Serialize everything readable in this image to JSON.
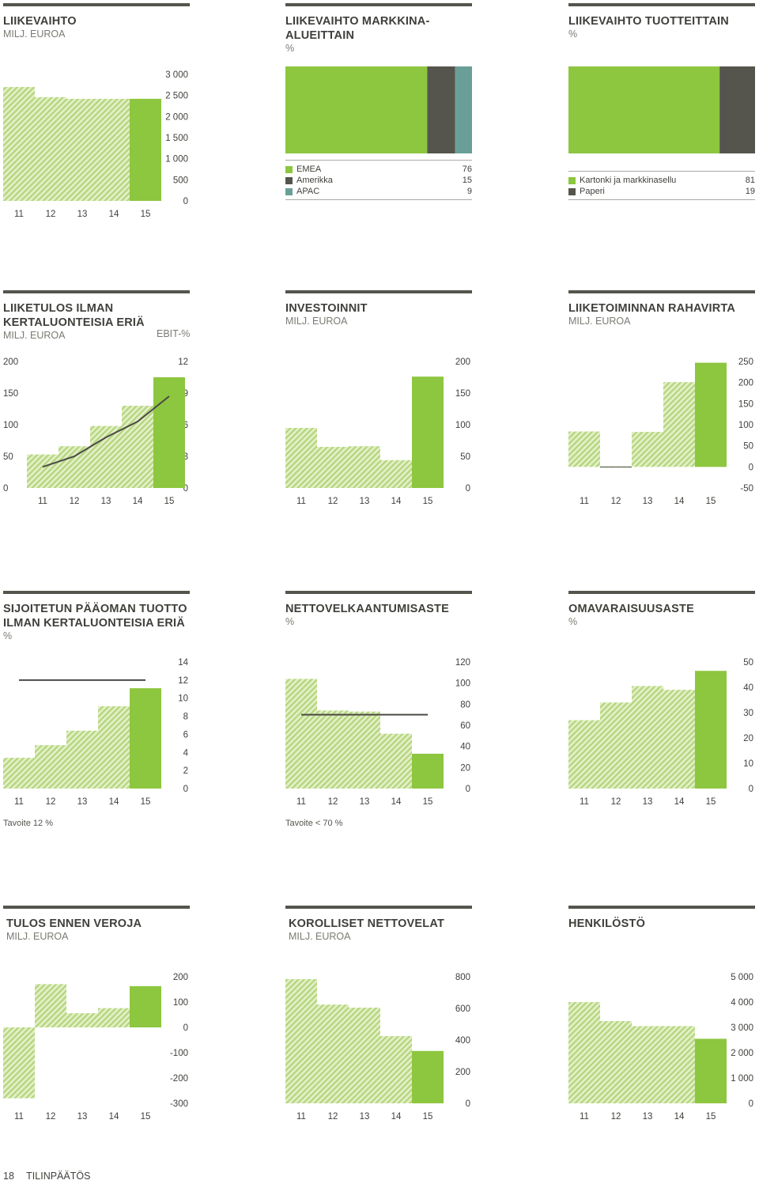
{
  "colors": {
    "green": "#8dc63f",
    "hatch_light": "#e3efc6",
    "hatch_line": "#b2d57c",
    "dark": "#55554e",
    "teal": "#6a9f98",
    "rule": "#55554e",
    "line": "#4a4a44"
  },
  "footer": {
    "page_number": "18",
    "section": "TILINPÄÄTÖS"
  },
  "chart_data": [
    {
      "id": "liikevaihto",
      "type": "bar",
      "title_lines": [
        "LIIKEVAIHTO"
      ],
      "unit": "MILJ. EUROA",
      "categories": [
        "11",
        "12",
        "13",
        "14",
        "15"
      ],
      "values": [
        2700,
        2460,
        2420,
        2420,
        2420
      ],
      "ylim": [
        0,
        3000
      ],
      "yticks": [
        "3 000",
        "2 500",
        "2 000",
        "1 500",
        "1 000",
        "500",
        "0"
      ],
      "ytick_values": [
        3000,
        2500,
        2000,
        1500,
        1000,
        500,
        0
      ]
    },
    {
      "id": "liikevaihto-markkina",
      "type": "stacked-bar",
      "title_lines": [
        "LIIKEVAIHTO MARKKINA-",
        "ALUEITTAIN"
      ],
      "unit": "%",
      "segments": [
        {
          "name": "EMEA",
          "value": 76,
          "color": "#8dc63f"
        },
        {
          "name": "Amerikka",
          "value": 15,
          "color": "#55554e"
        },
        {
          "name": "APAC",
          "value": 9,
          "color": "#6a9f98"
        }
      ],
      "legend": [
        {
          "label": "EMEA",
          "value": "76"
        },
        {
          "label": "Amerikka",
          "value": "15"
        },
        {
          "label": "APAC",
          "value": "9"
        }
      ]
    },
    {
      "id": "liikevaihto-tuotteittain",
      "type": "stacked-bar",
      "title_lines": [
        "LIIKEVAIHTO TUOTTEITTAIN"
      ],
      "unit": "%",
      "segments": [
        {
          "name": "Kartonki ja markkinasellu",
          "value": 81,
          "color": "#8dc63f"
        },
        {
          "name": "Paperi",
          "value": 19,
          "color": "#55554e"
        }
      ],
      "legend": [
        {
          "label": "Kartonki  ja markkinasellu",
          "value": "81"
        },
        {
          "label": "Paperi",
          "value": "19"
        }
      ]
    },
    {
      "id": "liiketulos",
      "type": "bar+line",
      "title_lines": [
        "LIIKETULOS ILMAN",
        "KERTALUONTEISIA ERIÄ"
      ],
      "unit": "MILJ. EUROA",
      "unit_right": "EBIT-%",
      "categories": [
        "11",
        "12",
        "13",
        "14",
        "15"
      ],
      "values": [
        53,
        66,
        98,
        130,
        175
      ],
      "ylim": [
        0,
        200
      ],
      "yticks_left": [
        "200",
        "150",
        "100",
        "50",
        "0"
      ],
      "yticks_right": [
        "12",
        "9",
        "6",
        "3",
        "0"
      ],
      "ytick_values": [
        200,
        150,
        100,
        50,
        0
      ],
      "line_ebit_percent": [
        2.0,
        3.0,
        4.8,
        6.3,
        8.7
      ],
      "line_ylim": [
        0,
        12
      ]
    },
    {
      "id": "investoinnit",
      "type": "bar",
      "title_lines": [
        "INVESTOINNIT"
      ],
      "unit": "MILJ. EUROA",
      "categories": [
        "11",
        "12",
        "13",
        "14",
        "15"
      ],
      "values": [
        95,
        65,
        66,
        44,
        176
      ],
      "ylim": [
        0,
        200
      ],
      "yticks": [
        "200",
        "150",
        "100",
        "50",
        "0"
      ],
      "ytick_values": [
        200,
        150,
        100,
        50,
        0
      ]
    },
    {
      "id": "rahavirta",
      "type": "bar",
      "title_lines": [
        "LIIKETOIMINNAN RAHAVIRTA"
      ],
      "unit": "MILJ. EUROA",
      "categories": [
        "11",
        "12",
        "13",
        "14",
        "15"
      ],
      "values": [
        84,
        1,
        83,
        201,
        247
      ],
      "ylim": [
        -50,
        250
      ],
      "yticks": [
        "250",
        "200",
        "150",
        "100",
        "50",
        "0",
        "-50"
      ],
      "ytick_values": [
        250,
        200,
        150,
        100,
        50,
        0,
        -50
      ]
    },
    {
      "id": "sijoitetun",
      "type": "bar+target",
      "title_lines": [
        "SIJOITETUN PÄÄOMAN TUOTTO",
        "ILMAN KERTALUONTEISIA ERIÄ"
      ],
      "unit": "%",
      "categories": [
        "11",
        "12",
        "13",
        "14",
        "15"
      ],
      "values": [
        3.4,
        4.8,
        6.4,
        9.1,
        11.1
      ],
      "target": 12,
      "ylim": [
        0,
        14
      ],
      "yticks": [
        "14",
        "12",
        "10",
        "8",
        "6",
        "4",
        "2",
        "0"
      ],
      "ytick_values": [
        14,
        12,
        10,
        8,
        6,
        4,
        2,
        0
      ],
      "note": "Tavoite 12 %"
    },
    {
      "id": "nettovelkaantumisaste",
      "type": "bar+target",
      "title_lines": [
        "NETTOVELKAANTUMISASTE"
      ],
      "unit": "%",
      "categories": [
        "11",
        "12",
        "13",
        "14",
        "15"
      ],
      "values": [
        104,
        74,
        73,
        52,
        33
      ],
      "target": 70,
      "ylim": [
        0,
        120
      ],
      "yticks": [
        "120",
        "100",
        "80",
        "60",
        "40",
        "20",
        "0"
      ],
      "ytick_values": [
        120,
        100,
        80,
        60,
        40,
        20,
        0
      ],
      "note": "Tavoite < 70 %"
    },
    {
      "id": "omavaraisuusaste",
      "type": "bar",
      "title_lines": [
        "OMAVARAISUUSASTE"
      ],
      "unit": "%",
      "categories": [
        "11",
        "12",
        "13",
        "14",
        "15"
      ],
      "values": [
        27,
        34,
        40.5,
        39,
        46.5
      ],
      "ylim": [
        0,
        50
      ],
      "yticks": [
        "50",
        "40",
        "30",
        "20",
        "10",
        "0"
      ],
      "ytick_values": [
        50,
        40,
        30,
        20,
        10,
        0
      ]
    },
    {
      "id": "tulos-ennen-veroja",
      "type": "bar",
      "title_lines": [
        "TULOS ENNEN VEROJA"
      ],
      "unit": "MILJ. EUROA",
      "categories": [
        "11",
        "12",
        "13",
        "14",
        "15"
      ],
      "values": [
        -280,
        171,
        56,
        76,
        163
      ],
      "ylim": [
        -300,
        200
      ],
      "yticks": [
        "200",
        "100",
        "0",
        "-100",
        "-200",
        "-300"
      ],
      "ytick_values": [
        200,
        100,
        0,
        -100,
        -200,
        -300
      ]
    },
    {
      "id": "korolliset-nettovelat",
      "type": "bar",
      "title_lines": [
        "KOROLLISET NETTOVELAT"
      ],
      "unit": "MILJ. EUROA",
      "categories": [
        "11",
        "12",
        "13",
        "14",
        "15"
      ],
      "values": [
        785,
        624,
        605,
        425,
        331
      ],
      "ylim": [
        0,
        800
      ],
      "yticks": [
        "800",
        "600",
        "400",
        "200",
        "0"
      ],
      "ytick_values": [
        800,
        600,
        400,
        200,
        0
      ]
    },
    {
      "id": "henkilosto",
      "type": "bar",
      "title_lines": [
        "HENKILÖSTÖ"
      ],
      "unit": "",
      "categories": [
        "11",
        "12",
        "13",
        "14",
        "15"
      ],
      "values": [
        4000,
        3250,
        3050,
        3050,
        2550
      ],
      "ylim": [
        0,
        5000
      ],
      "yticks": [
        "5 000",
        "4 000",
        "3 000",
        "2 000",
        "1 000",
        "0"
      ],
      "ytick_values": [
        5000,
        4000,
        3000,
        2000,
        1000,
        0
      ]
    }
  ]
}
